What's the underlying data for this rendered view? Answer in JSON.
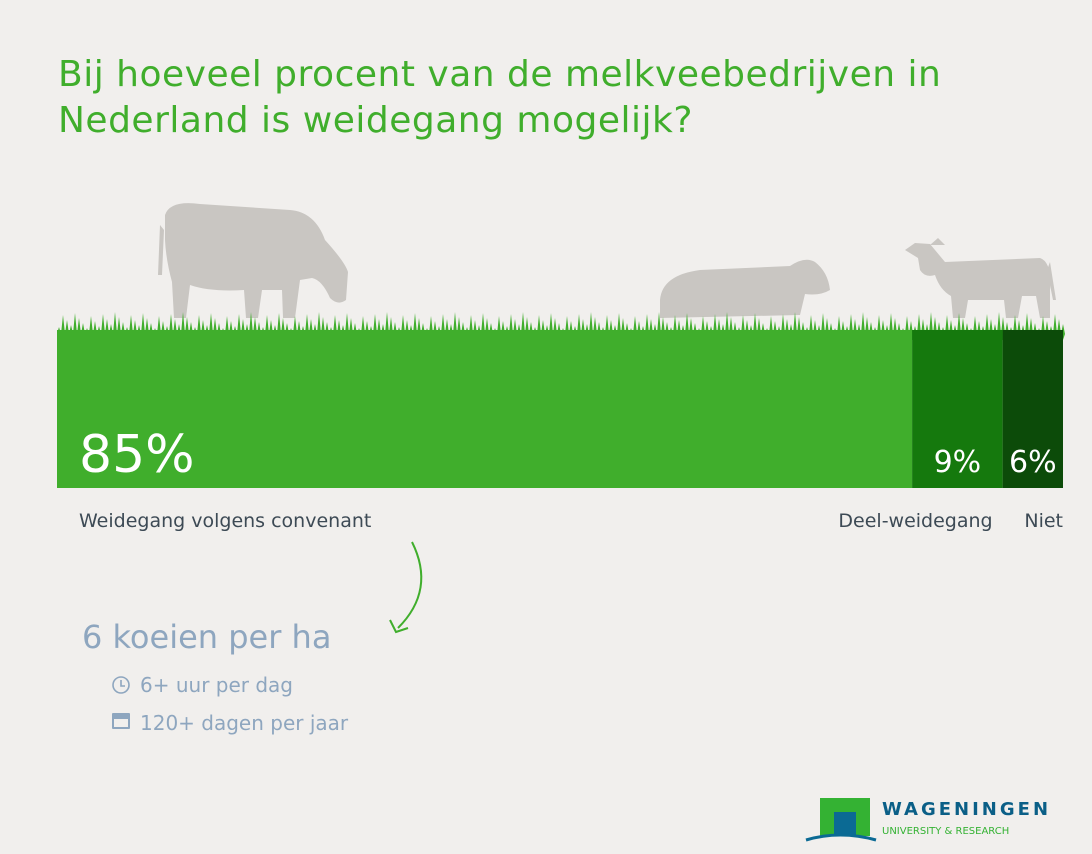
{
  "chart_data": {
    "type": "bar",
    "title": "Bij hoeveel procent van de melkveebedrijven in Nederland is weidegang mogelijk?",
    "categories": [
      "Weidegang volgens convenant",
      "Deel-weidegang",
      "Niet"
    ],
    "values": [
      85,
      9,
      6
    ],
    "value_labels": [
      "85%",
      "9%",
      "6%"
    ],
    "colors": [
      "#40ae2c",
      "#15790d",
      "#0c4b09"
    ],
    "annotation": {
      "title": "6 koeien per ha",
      "items": [
        "6+ uur per dag",
        "120+ dagen per jaar"
      ]
    },
    "logo": {
      "name": "WAGENINGEN",
      "subtitle": "UNIVERSITY & RESEARCH"
    }
  }
}
